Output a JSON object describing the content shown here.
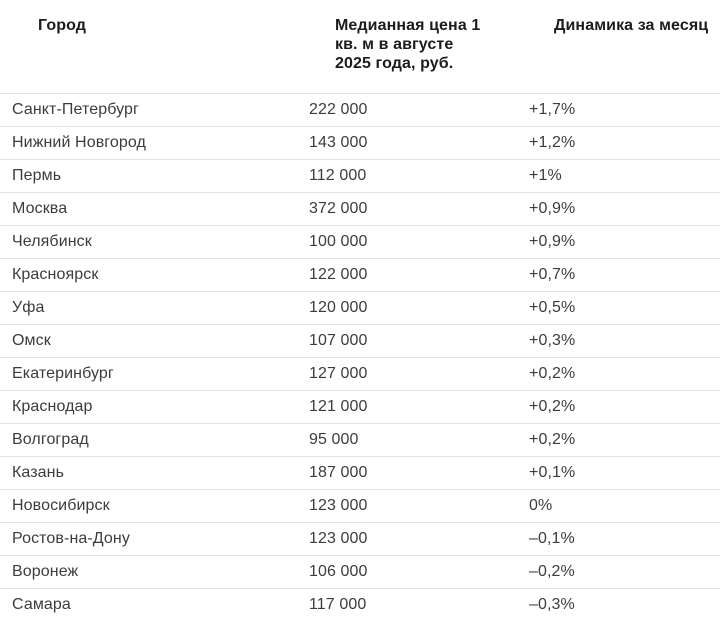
{
  "colors": {
    "background": "#ffffff",
    "header_text": "#1c1c1c",
    "body_text": "#3c3c3c",
    "divider": "#e2e2e2"
  },
  "chart_data": {
    "type": "table",
    "title": "",
    "columns": [
      "Город",
      "Медианная цена 1\nкв. м в августе\n2025 года, руб.",
      "Динамика за месяц"
    ],
    "rows": [
      [
        "Санкт-Петербург",
        "222 000",
        "+1,7%"
      ],
      [
        "Нижний Новгород",
        "143 000",
        "+1,2%"
      ],
      [
        "Пермь",
        "112 000",
        "+1%"
      ],
      [
        "Москва",
        "372 000",
        "+0,9%"
      ],
      [
        "Челябинск",
        "100 000",
        "+0,9%"
      ],
      [
        "Красноярск",
        "122 000",
        "+0,7%"
      ],
      [
        "Уфа",
        "120 000",
        "+0,5%"
      ],
      [
        "Омск",
        "107 000",
        "+0,3%"
      ],
      [
        "Екатеринбург",
        "127 000",
        "+0,2%"
      ],
      [
        "Краснодар",
        "121 000",
        "+0,2%"
      ],
      [
        "Волгоград",
        "95 000",
        "+0,2%"
      ],
      [
        "Казань",
        "187 000",
        "+0,1%"
      ],
      [
        "Новосибирск",
        "123 000",
        "0%"
      ],
      [
        "Ростов-на-Дону",
        "123 000",
        "–0,1%"
      ],
      [
        "Воронеж",
        "106 000",
        "–0,2%"
      ],
      [
        "Самара",
        "117 000",
        "–0,3%"
      ]
    ]
  }
}
